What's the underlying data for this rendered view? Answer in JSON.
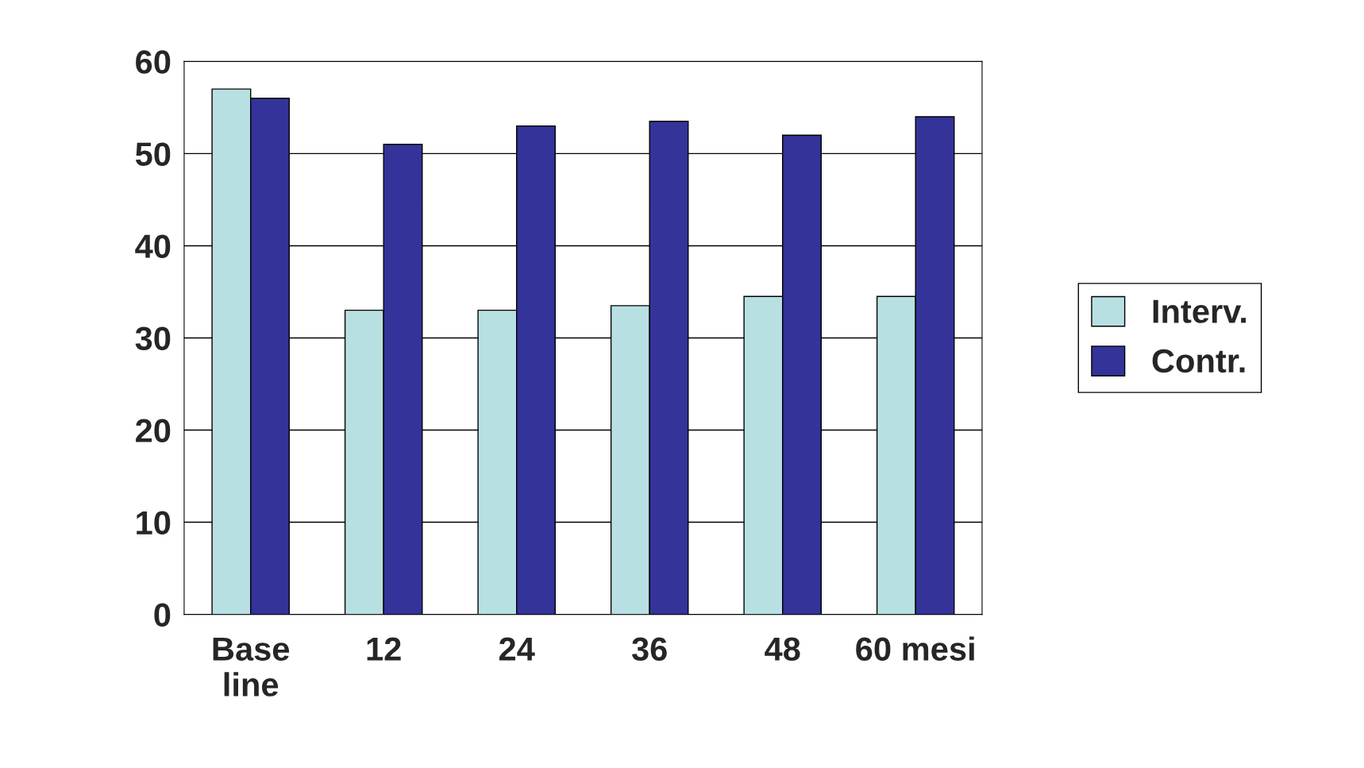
{
  "chart_data": {
    "type": "bar",
    "categories": [
      "Base\nline",
      "12",
      "24",
      "36",
      "48",
      "60 mesi"
    ],
    "series": [
      {
        "name": "Interv.",
        "color": "#b8e0e2",
        "values": [
          57,
          33,
          33,
          33.5,
          34.5,
          34.5
        ]
      },
      {
        "name": "Contr.",
        "color": "#333399",
        "values": [
          56,
          51,
          53,
          53.5,
          52,
          54
        ]
      }
    ],
    "ylim": [
      0,
      60
    ],
    "yticks": [
      0,
      10,
      20,
      30,
      40,
      50,
      60
    ],
    "grid": "y",
    "legend": "right"
  }
}
